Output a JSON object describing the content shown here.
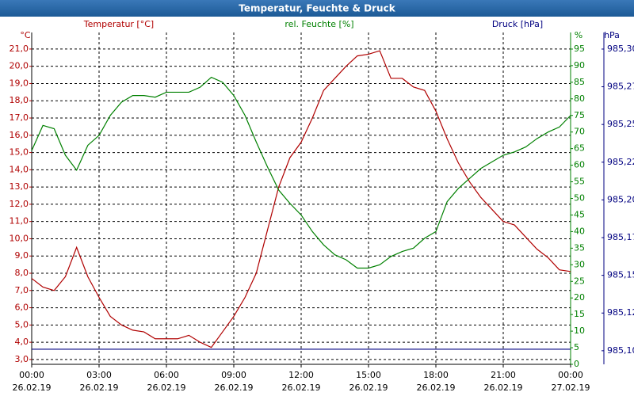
{
  "chart_data": {
    "type": "line",
    "title": "Temperatur, Feuchte & Druck",
    "x": [
      0,
      0.5,
      1,
      1.5,
      2,
      2.5,
      3,
      3.5,
      4,
      4.5,
      5,
      5.5,
      6,
      6.5,
      7,
      7.5,
      8,
      8.5,
      9,
      9.5,
      10,
      10.5,
      11,
      11.5,
      12,
      12.5,
      13,
      13.5,
      14,
      14.5,
      15,
      15.5,
      16,
      16.5,
      17,
      17.5,
      18,
      18.5,
      19,
      19.5,
      20,
      20.5,
      21,
      21.5,
      22,
      22.5,
      23,
      23.5,
      24
    ],
    "xlim": [
      0,
      24
    ],
    "xticks": [
      {
        "value": 0,
        "label": "00:00"
      },
      {
        "value": 3,
        "label": "03:00"
      },
      {
        "value": 6,
        "label": "06:00"
      },
      {
        "value": 9,
        "label": "09:00"
      },
      {
        "value": 12,
        "label": "12:00"
      },
      {
        "value": 15,
        "label": "15:00"
      },
      {
        "value": 18,
        "label": "18:00"
      },
      {
        "value": 21,
        "label": "21:00"
      },
      {
        "value": 24,
        "label": "00:00"
      }
    ],
    "xtick_dates": [
      "26.02.19",
      "26.02.19",
      "26.02.19",
      "26.02.19",
      "26.02.19",
      "26.02.19",
      "26.02.19",
      "26.02.19",
      "27.02.19"
    ],
    "grid": true,
    "axes": [
      {
        "title": "Temperatur [°C]",
        "unit": "°C",
        "color": "#b00000",
        "lim": [
          2.72,
          21.96
        ],
        "ticks": [
          {
            "value": 3,
            "label": "3,0"
          },
          {
            "value": 4,
            "label": "4,0"
          },
          {
            "value": 5,
            "label": "5,0"
          },
          {
            "value": 6,
            "label": "6,0"
          },
          {
            "value": 7,
            "label": "7,0"
          },
          {
            "value": 8,
            "label": "8,0"
          },
          {
            "value": 9,
            "label": "9,0"
          },
          {
            "value": 10,
            "label": "10,0"
          },
          {
            "value": 11,
            "label": "11,0"
          },
          {
            "value": 12,
            "label": "12,0"
          },
          {
            "value": 13,
            "label": "13,0"
          },
          {
            "value": 14,
            "label": "14,0"
          },
          {
            "value": 15,
            "label": "15,0"
          },
          {
            "value": 16,
            "label": "16,0"
          },
          {
            "value": 17,
            "label": "17,0"
          },
          {
            "value": 18,
            "label": "18,0"
          },
          {
            "value": 19,
            "label": "19,0"
          },
          {
            "value": 20,
            "label": "20,0"
          },
          {
            "value": 21,
            "label": "21,0"
          }
        ]
      },
      {
        "title": "rel. Feuchte [%]",
        "unit": "%",
        "color": "#008000",
        "lim": [
          0,
          100
        ],
        "ticks": [
          0,
          5,
          10,
          15,
          20,
          25,
          30,
          35,
          40,
          45,
          50,
          55,
          60,
          65,
          70,
          75,
          80,
          85,
          90,
          95
        ]
      },
      {
        "title": "Druck [hPa]",
        "unit": "hPa",
        "color": "#000080",
        "lim": [
          985.091,
          985.311
        ],
        "ticks": [
          {
            "value": 985.1,
            "label": "985,10"
          },
          {
            "value": 985.125,
            "label": "985,12"
          },
          {
            "value": 985.15,
            "label": "985,15"
          },
          {
            "value": 985.175,
            "label": "985,17"
          },
          {
            "value": 985.2,
            "label": "985,20"
          },
          {
            "value": 985.225,
            "label": "985,22"
          },
          {
            "value": 985.25,
            "label": "985,25"
          },
          {
            "value": 985.275,
            "label": "985,27"
          },
          {
            "value": 985.3,
            "label": "985,30"
          }
        ]
      }
    ],
    "series": [
      {
        "name": "Temperatur",
        "axis": 0,
        "color": "#b00000",
        "values": [
          7.7,
          7.2,
          7.0,
          7.8,
          9.5,
          7.8,
          6.6,
          5.5,
          5.0,
          4.7,
          4.6,
          4.2,
          4.2,
          4.2,
          4.4,
          4.0,
          3.7,
          4.6,
          5.5,
          6.6,
          8.0,
          10.5,
          13.0,
          14.7,
          15.6,
          17.0,
          18.6,
          19.3,
          20.0,
          20.6,
          20.7,
          20.9,
          19.3,
          19.3,
          18.8,
          18.6,
          17.4,
          15.8,
          14.4,
          13.3,
          12.4,
          11.7,
          11.0,
          10.8,
          10.1,
          9.4,
          8.9,
          8.2,
          8.1
        ]
      },
      {
        "name": "rel. Feuchte",
        "axis": 1,
        "color": "#008000",
        "values": [
          64.4,
          72,
          71,
          63,
          58.5,
          66,
          69,
          75,
          79,
          81,
          81,
          80.5,
          82,
          82,
          82,
          83.5,
          86.5,
          85,
          81,
          75,
          67,
          59.5,
          52.5,
          48.5,
          45,
          40,
          36,
          33,
          31.5,
          29,
          29,
          30,
          32.5,
          34,
          35,
          38,
          40,
          49,
          53,
          56,
          59,
          61,
          63,
          64,
          65.5,
          68,
          70,
          71.5,
          75
        ]
      },
      {
        "name": "Druck",
        "axis": 2,
        "color": "#000080",
        "values": [
          985.101,
          985.101,
          985.101,
          985.101,
          985.101,
          985.101,
          985.101,
          985.101,
          985.101,
          985.101,
          985.101,
          985.101,
          985.101,
          985.101,
          985.101,
          985.101,
          985.101,
          985.101,
          985.101,
          985.101,
          985.101,
          985.101,
          985.101,
          985.101,
          985.101,
          985.101,
          985.101,
          985.101,
          985.101,
          985.101,
          985.101,
          985.101,
          985.101,
          985.101,
          985.101,
          985.101,
          985.101,
          985.101,
          985.101,
          985.101,
          985.101,
          985.101,
          985.101,
          985.101,
          985.101,
          985.101,
          985.101,
          985.101,
          985.101
        ]
      }
    ]
  }
}
